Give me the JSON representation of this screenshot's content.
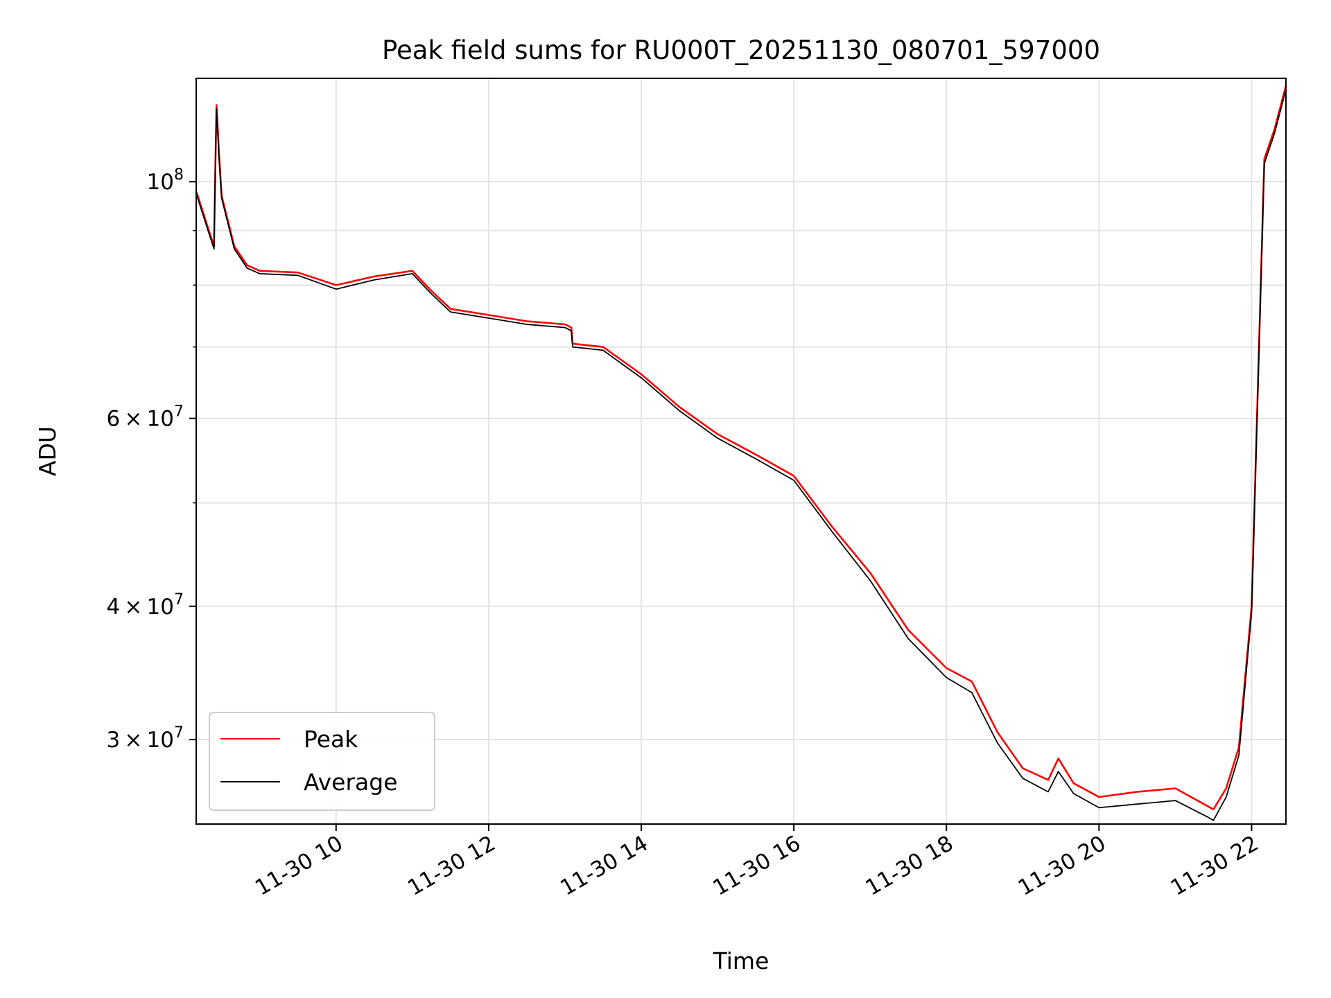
{
  "chart_data": {
    "type": "line",
    "title": "Peak field sums for RU000T_20251130_080701_597000",
    "xlabel": "Time",
    "ylabel": "ADU",
    "yscale": "log",
    "xlim": [
      "2025-11-30 08:10",
      "2025-11-30 22:27"
    ],
    "ylim": [
      25000000,
      125000000
    ],
    "grid": true,
    "legend_loc": "lower left",
    "x_ticks": [
      {
        "value": "2025-11-30 10:00",
        "label": "11-30 10"
      },
      {
        "value": "2025-11-30 12:00",
        "label": "11-30 12"
      },
      {
        "value": "2025-11-30 14:00",
        "label": "11-30 14"
      },
      {
        "value": "2025-11-30 16:00",
        "label": "11-30 16"
      },
      {
        "value": "2025-11-30 18:00",
        "label": "11-30 18"
      },
      {
        "value": "2025-11-30 20:00",
        "label": "11-30 20"
      },
      {
        "value": "2025-11-30 22:00",
        "label": "11-30 22"
      }
    ],
    "y_ticks": [
      {
        "value": 30000000,
        "mant": "3",
        "exp": "7"
      },
      {
        "value": 40000000,
        "mant": "4",
        "exp": "7"
      },
      {
        "value": 60000000,
        "mant": "6",
        "exp": "7"
      },
      {
        "value": 100000000,
        "mant": "10",
        "exp": "8"
      }
    ],
    "y_minor_ticks": [
      50000000,
      70000000,
      80000000,
      90000000
    ],
    "x": [
      "2025-11-30 08:10",
      "2025-11-30 08:20",
      "2025-11-30 08:24",
      "2025-11-30 08:25",
      "2025-11-30 08:26",
      "2025-11-30 08:27",
      "2025-11-30 08:28",
      "2025-11-30 08:30",
      "2025-11-30 08:40",
      "2025-11-30 08:50",
      "2025-11-30 09:00",
      "2025-11-30 09:30",
      "2025-11-30 10:00",
      "2025-11-30 10:30",
      "2025-11-30 11:00",
      "2025-11-30 11:15",
      "2025-11-30 11:30",
      "2025-11-30 12:00",
      "2025-11-30 12:30",
      "2025-11-30 13:00",
      "2025-11-30 13:05",
      "2025-11-30 13:06",
      "2025-11-30 13:30",
      "2025-11-30 14:00",
      "2025-11-30 14:30",
      "2025-11-30 15:00",
      "2025-11-30 15:30",
      "2025-11-30 16:00",
      "2025-11-30 16:30",
      "2025-11-30 17:00",
      "2025-11-30 17:30",
      "2025-11-30 18:00",
      "2025-11-30 18:20",
      "2025-11-30 18:40",
      "2025-11-30 19:00",
      "2025-11-30 19:20",
      "2025-11-30 19:28",
      "2025-11-30 19:40",
      "2025-11-30 20:00",
      "2025-11-30 20:30",
      "2025-11-30 21:00",
      "2025-11-30 21:25",
      "2025-11-30 21:30",
      "2025-11-30 21:40",
      "2025-11-30 21:50",
      "2025-11-30 22:00",
      "2025-11-30 22:10",
      "2025-11-30 22:18",
      "2025-11-30 22:27"
    ],
    "series": [
      {
        "name": "Peak",
        "color": "#ff0000",
        "values": [
          98000000,
          90000000,
          87000000,
          102000000,
          118000000,
          112000000,
          106000000,
          97000000,
          87000000,
          83500000,
          82500000,
          82200000,
          80000000,
          81500000,
          82500000,
          79000000,
          76000000,
          75000000,
          74000000,
          73500000,
          73000000,
          70500000,
          70000000,
          66000000,
          61500000,
          58000000,
          55500000,
          53000000,
          47500000,
          43000000,
          38000000,
          35000000,
          34000000,
          30500000,
          28200000,
          27500000,
          28800000,
          27300000,
          26500000,
          26800000,
          27000000,
          26000000,
          25800000,
          27000000,
          29500000,
          40000000,
          105000000,
          112000000,
          123000000
        ]
      },
      {
        "name": "Average",
        "color": "#000000",
        "values": [
          97500000,
          89500000,
          86500000,
          101500000,
          117000000,
          111000000,
          105000000,
          96500000,
          86500000,
          83000000,
          82000000,
          81700000,
          79300000,
          80900000,
          82000000,
          78500000,
          75500000,
          74500000,
          73500000,
          73000000,
          72500000,
          70000000,
          69500000,
          65500000,
          61000000,
          57500000,
          55000000,
          52500000,
          47000000,
          42300000,
          37300000,
          34300000,
          33200000,
          29800000,
          27600000,
          26800000,
          28000000,
          26700000,
          25900000,
          26100000,
          26300000,
          25400000,
          25200000,
          26500000,
          29000000,
          39500000,
          104000000,
          111000000,
          122000000
        ]
      }
    ]
  }
}
